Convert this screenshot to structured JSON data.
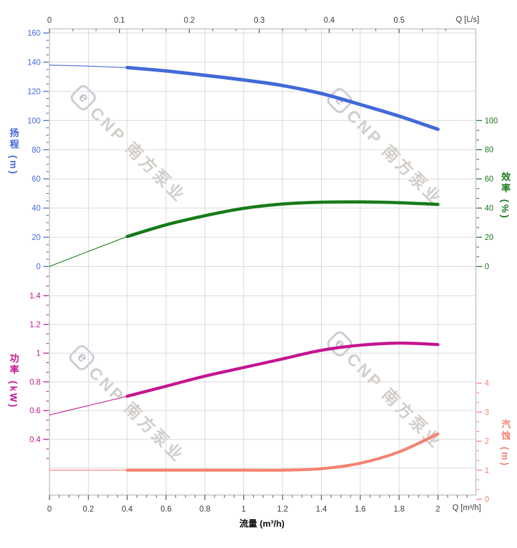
{
  "watermark": {
    "logo_letter": "e",
    "text": "CNP 南方泵业"
  },
  "axes": {
    "top": {
      "title": "Q [L/s]",
      "tick_values": [
        0,
        0.1,
        0.2,
        0.3,
        0.4,
        0.5
      ],
      "tick_labels": [
        "0",
        "0.1",
        "0.2",
        "0.3",
        "0.4",
        "0.5"
      ]
    },
    "bottom": {
      "title": "Q [m³/h]",
      "xlabel": "流量 (m³/h)",
      "tick_values": [
        0,
        0.2,
        0.4,
        0.6,
        0.8,
        1,
        1.2,
        1.4,
        1.6,
        1.8,
        2
      ],
      "tick_labels": [
        "0",
        "0.2",
        "0.4",
        "0.6",
        "0.8",
        "1",
        "1.2",
        "1.4",
        "1.6",
        "1.8",
        "2"
      ]
    },
    "head": {
      "title": "扬程 (m)",
      "color": "#4368d6",
      "ylim": [
        0,
        160
      ],
      "tick_values": [
        0,
        20,
        40,
        60,
        80,
        100,
        120,
        140,
        160
      ],
      "tick_labels": [
        "0",
        "20",
        "40",
        "60",
        "80",
        "100",
        "120",
        "140",
        "160"
      ]
    },
    "efficiency": {
      "title": "效率 (%)",
      "color": "#1b7a1b",
      "ylim": [
        0,
        100
      ],
      "tick_values": [
        0,
        20,
        40,
        60,
        80,
        100
      ],
      "tick_labels": [
        "0",
        "20",
        "40",
        "60",
        "80",
        "100"
      ]
    },
    "power": {
      "title": "功率 (kW)",
      "color": "#c41490",
      "ylim": [
        0.4,
        1.4
      ],
      "tick_values": [
        0.4,
        0.6,
        0.8,
        1,
        1.2,
        1.4
      ],
      "tick_labels": [
        "0.4",
        "0.6",
        "0.8",
        "1",
        "1.2",
        "1.4"
      ]
    },
    "npsh": {
      "title": "汽蚀 (m)",
      "color": "#f5826f",
      "ylim": [
        0,
        4
      ],
      "tick_values": [
        0,
        1,
        2,
        3,
        4
      ],
      "tick_labels": [
        "0",
        "1",
        "2",
        "3",
        "4"
      ]
    }
  },
  "chart_data": {
    "type": "line",
    "x_axis_unit_bottom": "m³/h",
    "x_axis_unit_top": "L/s",
    "x": [
      0,
      0.2,
      0.4,
      0.6,
      0.8,
      1.0,
      1.2,
      1.4,
      1.6,
      1.8,
      2.0
    ],
    "rated_range_start_x": 0.4,
    "series": [
      {
        "name": "扬程",
        "axis": "head",
        "unit": "m",
        "color": "#4169d8",
        "values": [
          138,
          137.3,
          136.3,
          134,
          131,
          127.8,
          124,
          118.5,
          111,
          103,
          94
        ]
      },
      {
        "name": "效率",
        "axis": "efficiency",
        "unit": "%",
        "color": "#177a17",
        "values": [
          0,
          10.3,
          20.5,
          28.5,
          34.8,
          39.8,
          42.8,
          44.0,
          44.2,
          43.7,
          42.5
        ]
      },
      {
        "name": "功率",
        "axis": "power",
        "unit": "kW",
        "color": "#c41490",
        "values": [
          0.57,
          0.635,
          0.7,
          0.77,
          0.84,
          0.9,
          0.96,
          1.02,
          1.055,
          1.07,
          1.06
        ]
      },
      {
        "name": "汽蚀",
        "axis": "npsh",
        "unit": "m",
        "color": "#f5826f",
        "values": [
          1.0,
          1.0,
          1.0,
          1.0,
          1.0,
          1.0,
          1.0,
          1.05,
          1.24,
          1.63,
          2.25
        ]
      }
    ]
  }
}
